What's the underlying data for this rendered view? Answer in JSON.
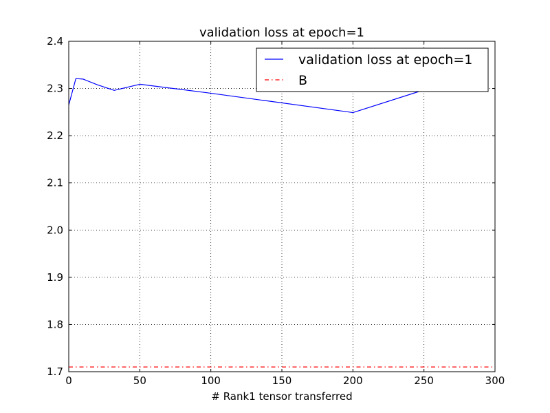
{
  "chart_data": {
    "type": "line",
    "title": "validation loss at epoch=1",
    "xlabel": "# Rank1 tensor transferred",
    "ylabel": "",
    "xlim": [
      0,
      300
    ],
    "ylim": [
      1.7,
      2.4
    ],
    "xticks": [
      0,
      50,
      100,
      150,
      200,
      250,
      300
    ],
    "yticks": [
      1.7,
      1.8,
      1.9,
      2.0,
      2.1,
      2.2,
      2.3,
      2.4
    ],
    "xtick_labels": [
      "0",
      "50",
      "100",
      "150",
      "200",
      "250",
      "300"
    ],
    "ytick_labels": [
      "1.7",
      "1.8",
      "1.9",
      "2.0",
      "2.1",
      "2.2",
      "2.3",
      "2.4"
    ],
    "grid": true,
    "legend_position": "top-right",
    "series": [
      {
        "name": "validation loss at epoch=1",
        "color": "#0000ff",
        "style": "solid",
        "x": [
          0,
          5,
          10,
          20,
          32,
          50,
          100,
          200,
          250,
          270
        ],
        "y": [
          2.265,
          2.321,
          2.32,
          2.308,
          2.296,
          2.309,
          2.29,
          2.249,
          2.297,
          2.305
        ]
      },
      {
        "name": "B",
        "color": "#ff0000",
        "style": "dashdot",
        "x": [
          0,
          300
        ],
        "y": [
          1.71,
          1.71
        ]
      }
    ]
  }
}
